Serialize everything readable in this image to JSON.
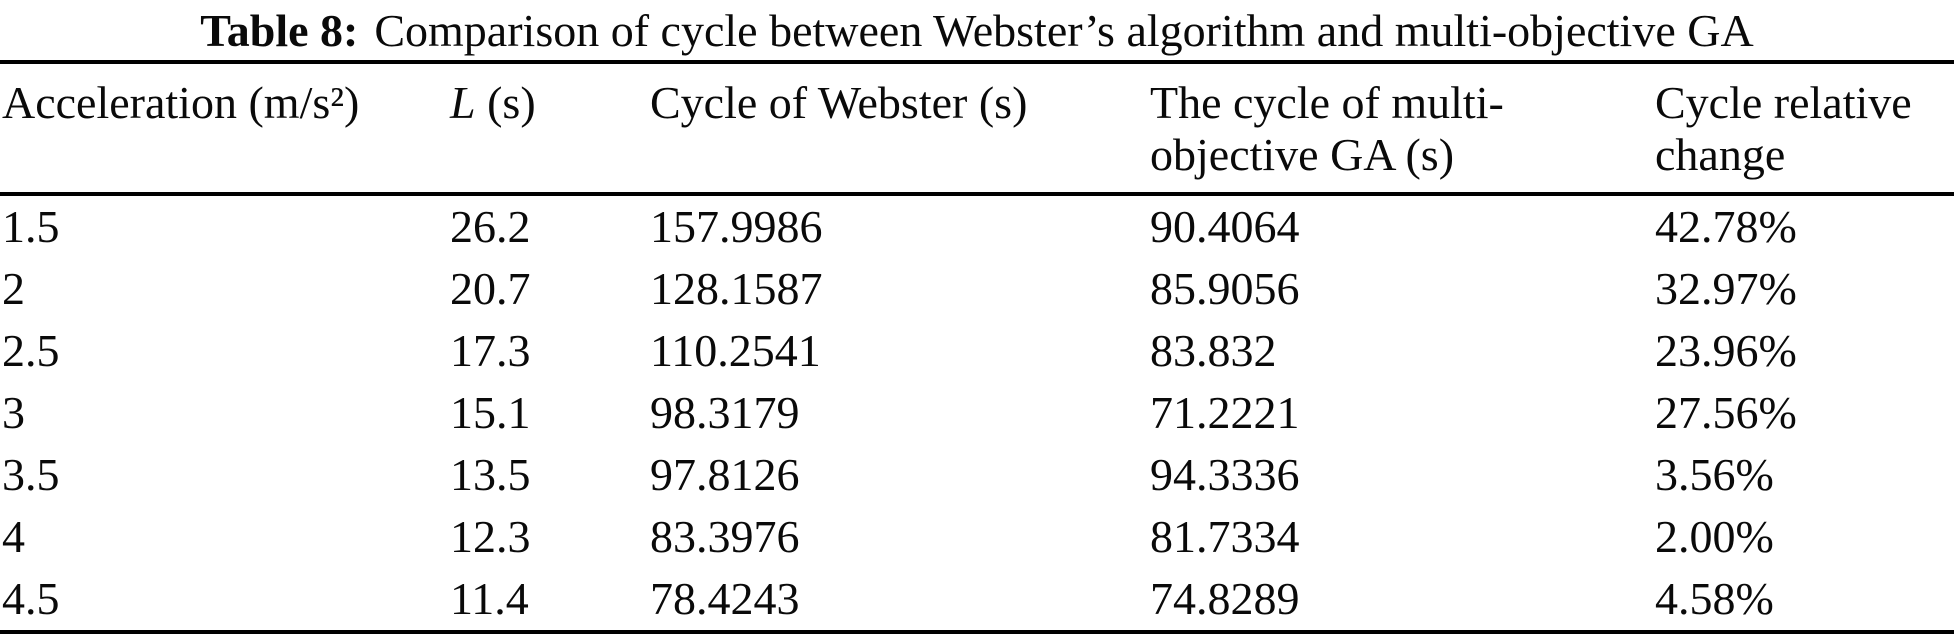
{
  "title": {
    "label": "Table 8:",
    "text": "Comparison of cycle between Webster’s algorithm and multi-objective GA"
  },
  "table": {
    "columns": [
      {
        "label": "Acceleration (m/s²)"
      },
      {
        "symbol": "L",
        "unit": " (s)"
      },
      {
        "label": "Cycle of Webster (s)"
      },
      {
        "label": "The cycle of multi-objective GA (s)"
      },
      {
        "label": "Cycle relative change"
      }
    ],
    "rows": [
      [
        "1.5",
        "26.2",
        "157.9986",
        "90.4064",
        "42.78%"
      ],
      [
        "2",
        "20.7",
        "128.1587",
        "85.9056",
        "32.97%"
      ],
      [
        "2.5",
        "17.3",
        "110.2541",
        "83.832",
        "23.96%"
      ],
      [
        "3",
        "15.1",
        "98.3179",
        "71.2221",
        "27.56%"
      ],
      [
        "3.5",
        "13.5",
        "97.8126",
        "94.3336",
        "3.56%"
      ],
      [
        "4",
        "12.3",
        "83.3976",
        "81.7334",
        "2.00%"
      ],
      [
        "4.5",
        "11.4",
        "78.4243",
        "74.8289",
        "4.58%"
      ]
    ]
  }
}
